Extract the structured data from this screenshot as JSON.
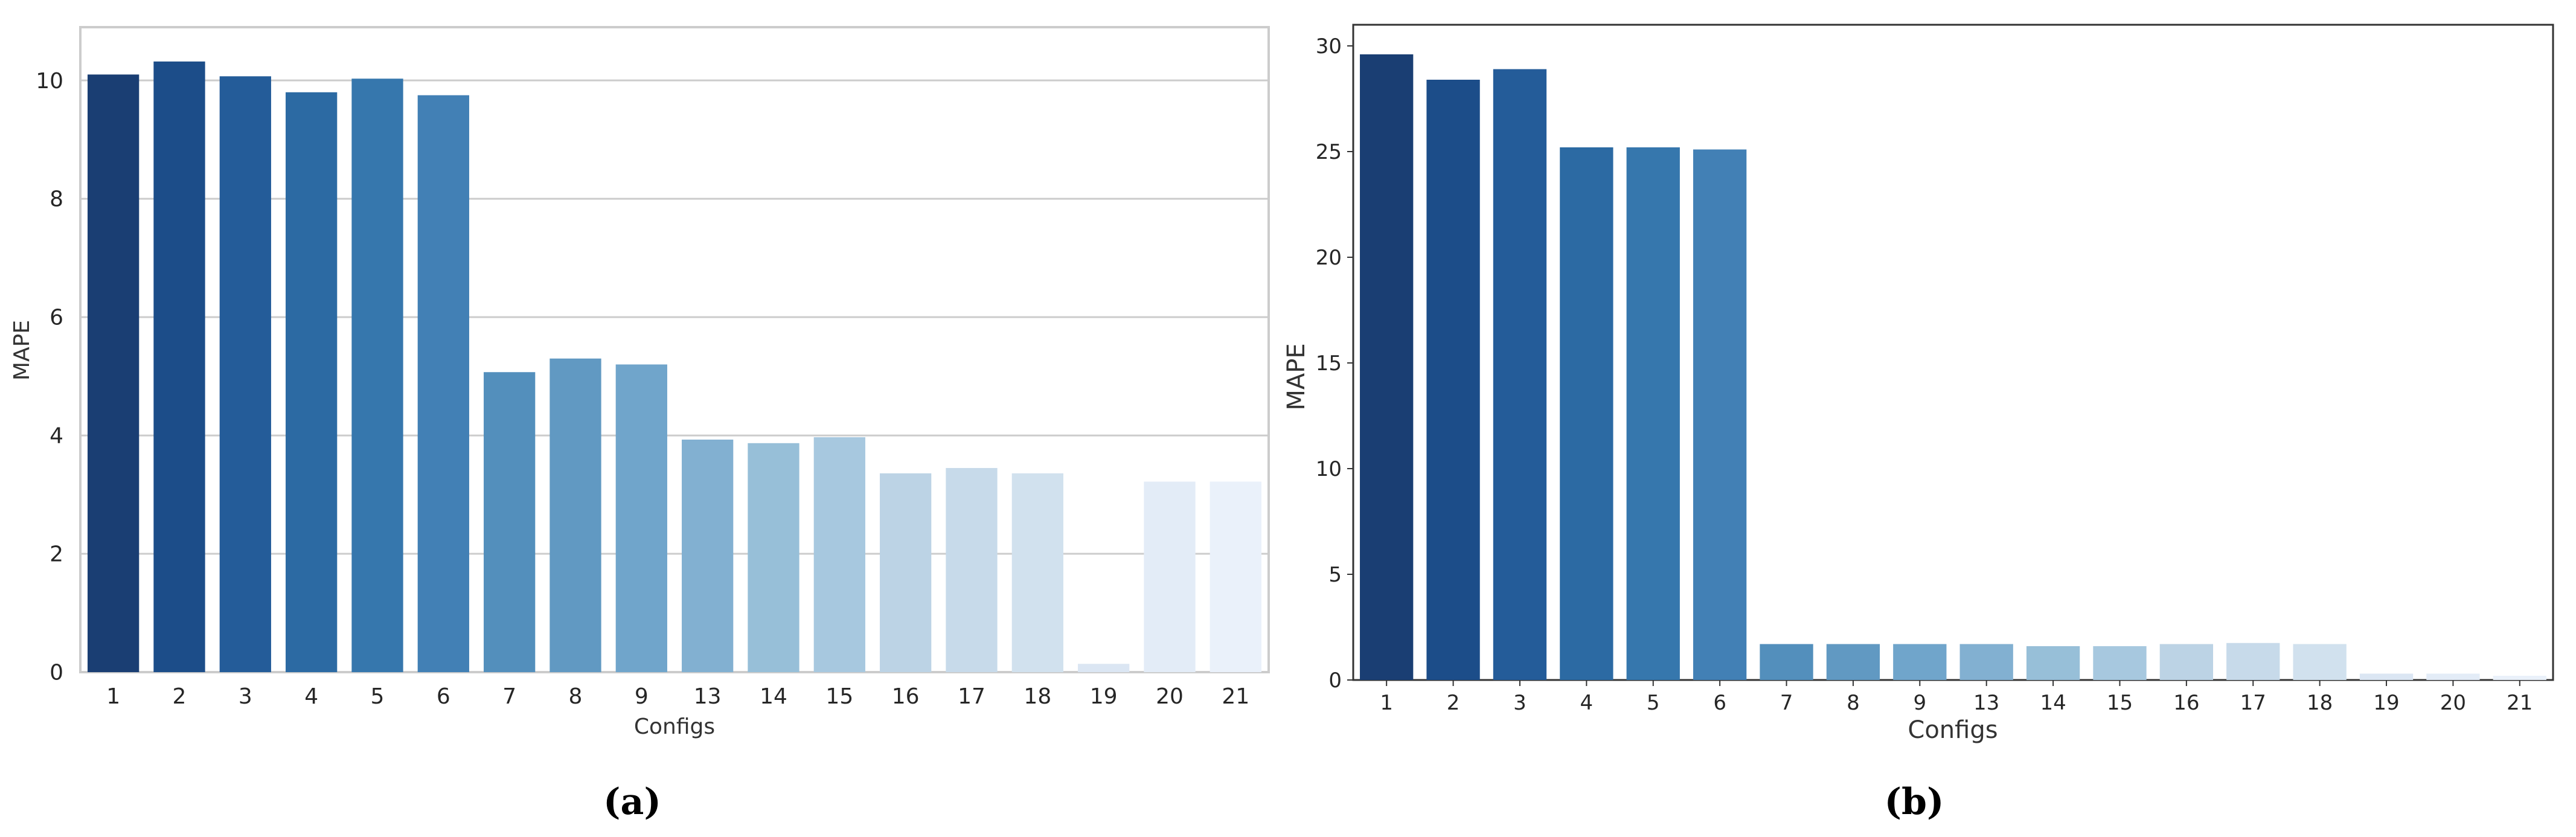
{
  "chart_data": [
    {
      "type": "bar",
      "caption": "(a)",
      "xlabel": "Configs",
      "ylabel": "MAPE",
      "ylim": [
        0,
        10.9
      ],
      "yticks": [
        0,
        2,
        4,
        6,
        8,
        10
      ],
      "grid": true,
      "categories": [
        "1",
        "2",
        "3",
        "4",
        "5",
        "6",
        "7",
        "8",
        "9",
        "13",
        "14",
        "15",
        "16",
        "17",
        "18",
        "19",
        "20",
        "21"
      ],
      "values": [
        10.1,
        10.32,
        10.07,
        9.8,
        10.03,
        9.75,
        5.07,
        5.3,
        5.2,
        3.93,
        3.87,
        3.97,
        3.36,
        3.45,
        3.36,
        0.14,
        3.22,
        3.22
      ],
      "colors": [
        "#1a3e73",
        "#1c4d89",
        "#245c99",
        "#2c6aa3",
        "#3677ad",
        "#4280b5",
        "#538fbc",
        "#6199c2",
        "#70a5cb",
        "#82b0d1",
        "#97bfd8",
        "#a7c8df",
        "#bcd3e5",
        "#c7daea",
        "#d1e1ee",
        "#dbe6f3",
        "#e3ecf7",
        "#eaf1fa"
      ]
    },
    {
      "type": "bar",
      "caption": "(b)",
      "xlabel": "Configs",
      "ylabel": "MAPE",
      "ylim": [
        0,
        31.0
      ],
      "yticks": [
        0,
        5,
        10,
        15,
        20,
        25,
        30
      ],
      "grid": false,
      "categories": [
        "1",
        "2",
        "3",
        "4",
        "5",
        "6",
        "7",
        "8",
        "9",
        "13",
        "14",
        "15",
        "16",
        "17",
        "18",
        "19",
        "20",
        "21"
      ],
      "values": [
        29.6,
        28.4,
        28.9,
        25.2,
        25.2,
        25.1,
        1.7,
        1.7,
        1.7,
        1.7,
        1.6,
        1.6,
        1.7,
        1.75,
        1.7,
        0.3,
        0.3,
        0.2
      ],
      "colors": [
        "#1a3e73",
        "#1c4d89",
        "#245c99",
        "#2c6aa3",
        "#3677ad",
        "#4280b5",
        "#538fbc",
        "#6199c2",
        "#70a5cb",
        "#82b0d1",
        "#97bfd8",
        "#a7c8df",
        "#bcd3e5",
        "#c7daea",
        "#d1e1ee",
        "#dbe6f3",
        "#e3ecf7",
        "#eaf1fa"
      ]
    }
  ]
}
